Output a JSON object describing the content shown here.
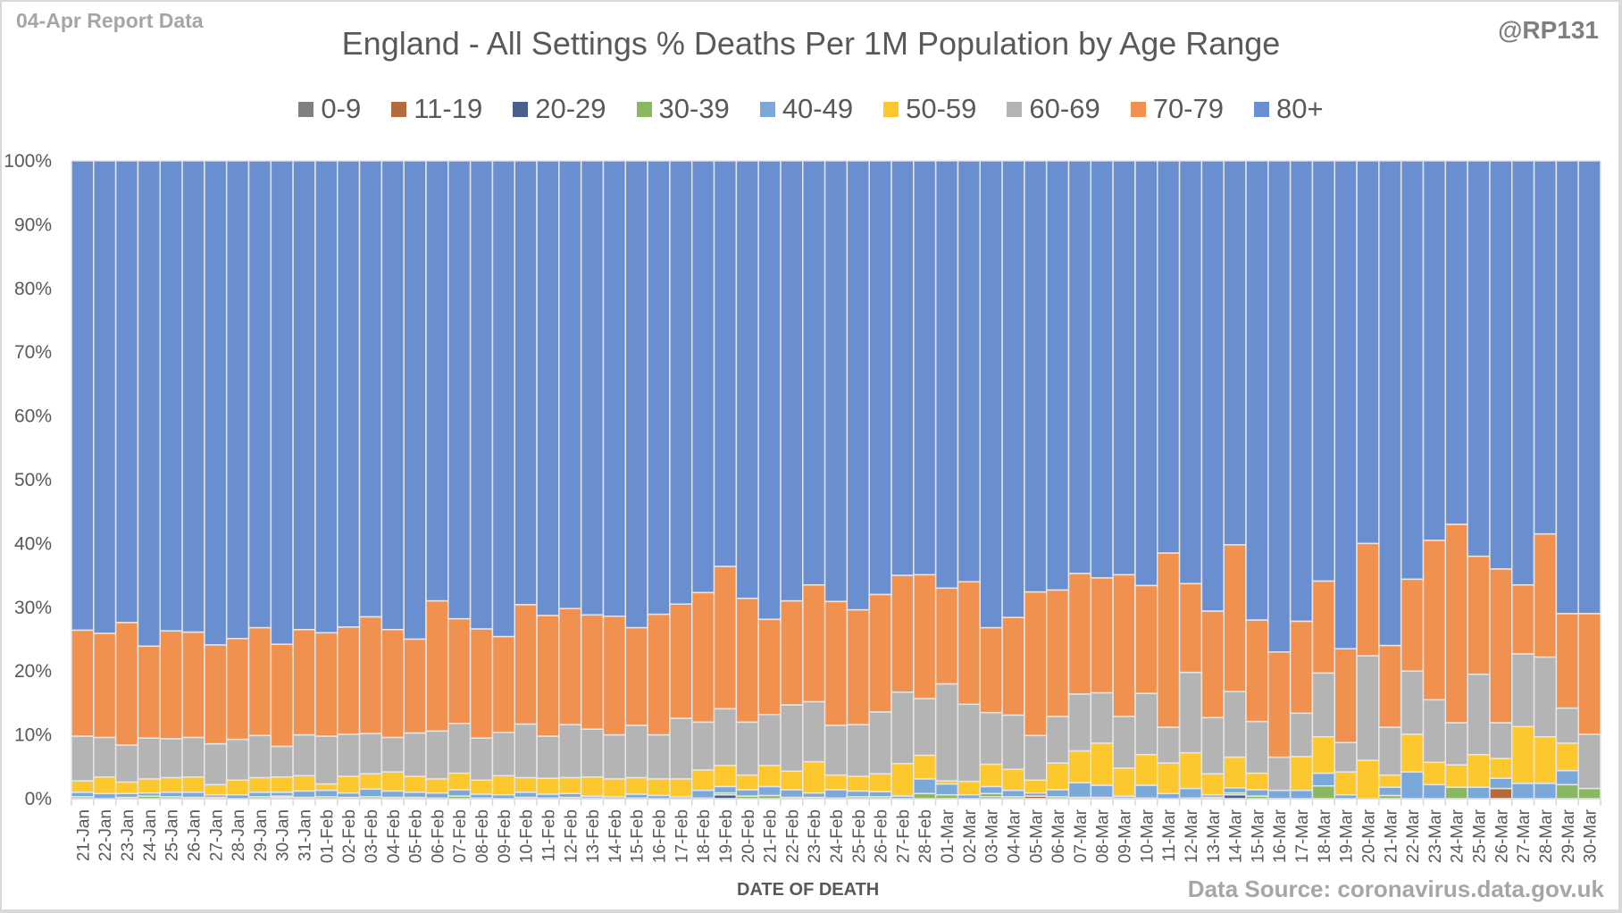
{
  "report_tag": "04-Apr Report Data",
  "handle": "@RP131",
  "source_note": "Data Source: coronavirus.data.gov.uk",
  "chart_data": {
    "type": "bar",
    "stacked": "percent",
    "title": "England - All Settings % Deaths Per 1M Population by Age Range",
    "xlabel": "DATE OF DEATH",
    "ylabel": "",
    "ylim": [
      0,
      100
    ],
    "yticks": [
      "0%",
      "10%",
      "20%",
      "30%",
      "40%",
      "50%",
      "60%",
      "70%",
      "80%",
      "90%",
      "100%"
    ],
    "grid": true,
    "legend_position": "top",
    "categories": [
      "21-Jan",
      "22-Jan",
      "23-Jan",
      "24-Jan",
      "25-Jan",
      "26-Jan",
      "27-Jan",
      "28-Jan",
      "29-Jan",
      "30-Jan",
      "31-Jan",
      "01-Feb",
      "02-Feb",
      "03-Feb",
      "04-Feb",
      "05-Feb",
      "06-Feb",
      "07-Feb",
      "08-Feb",
      "09-Feb",
      "10-Feb",
      "11-Feb",
      "12-Feb",
      "13-Feb",
      "14-Feb",
      "15-Feb",
      "16-Feb",
      "17-Feb",
      "18-Feb",
      "19-Feb",
      "20-Feb",
      "21-Feb",
      "22-Feb",
      "23-Feb",
      "24-Feb",
      "25-Feb",
      "26-Feb",
      "27-Feb",
      "28-Feb",
      "01-Mar",
      "02-Mar",
      "03-Mar",
      "04-Mar",
      "05-Mar",
      "06-Mar",
      "07-Mar",
      "08-Mar",
      "09-Mar",
      "10-Mar",
      "11-Mar",
      "12-Mar",
      "13-Mar",
      "14-Mar",
      "15-Mar",
      "16-Mar",
      "17-Mar",
      "18-Mar",
      "19-Mar",
      "20-Mar",
      "21-Mar",
      "22-Mar",
      "23-Mar",
      "24-Mar",
      "25-Mar",
      "26-Mar",
      "27-Mar",
      "28-Mar",
      "29-Mar",
      "30-Mar"
    ],
    "series": [
      {
        "name": "0-9",
        "color": "#808080",
        "values": [
          0,
          0,
          0,
          0,
          0,
          0,
          0,
          0,
          0,
          0,
          0,
          0,
          0,
          0,
          0,
          0,
          0,
          0,
          0,
          0,
          0,
          0,
          0,
          0,
          0,
          0,
          0,
          0,
          0,
          0,
          0,
          0,
          0,
          0,
          0,
          0,
          0,
          0,
          0,
          0,
          0,
          0,
          0,
          0,
          0,
          0,
          0,
          0,
          0,
          0,
          0,
          0,
          0,
          0,
          0,
          0,
          0,
          0,
          0,
          0,
          0,
          0,
          0,
          0,
          0,
          0,
          0,
          0,
          0
        ]
      },
      {
        "name": "11-19",
        "color": "#b36a3c",
        "values": [
          0,
          0,
          0,
          0,
          0,
          0,
          0,
          0,
          0,
          0,
          0,
          0,
          0,
          0,
          0,
          0,
          0,
          0,
          0,
          0,
          0,
          0,
          0,
          0,
          0,
          0,
          0,
          0,
          0,
          0,
          0,
          0,
          0,
          0,
          0,
          0,
          0,
          0,
          0,
          0,
          0,
          0,
          0,
          0.4,
          0,
          0,
          0,
          0,
          0,
          0,
          0,
          0,
          0,
          0,
          0,
          0,
          0,
          0,
          0,
          0,
          0,
          0,
          0,
          0,
          1.6,
          0,
          0,
          0,
          0
        ]
      },
      {
        "name": "20-29",
        "color": "#4a5f8c",
        "values": [
          0,
          0,
          0,
          0,
          0,
          0,
          0,
          0,
          0,
          0.2,
          0,
          0,
          0,
          0,
          0,
          0,
          0,
          0,
          0,
          0,
          0,
          0,
          0,
          0,
          0,
          0,
          0,
          0,
          0,
          0.6,
          0,
          0,
          0,
          0,
          0,
          0,
          0,
          0,
          0,
          0,
          0,
          0.3,
          0,
          0,
          0,
          0,
          0,
          0,
          0,
          0,
          0,
          0,
          0.6,
          0,
          0,
          0,
          0,
          0,
          0,
          0,
          0,
          0,
          0,
          0,
          0,
          0,
          0,
          0,
          0
        ]
      },
      {
        "name": "30-39",
        "color": "#8ab862",
        "values": [
          0.3,
          0,
          0.2,
          0.4,
          0.3,
          0.2,
          0.2,
          0,
          0.3,
          0.2,
          0.2,
          0.3,
          0.2,
          0.3,
          0.2,
          0.2,
          0.1,
          0.4,
          0.1,
          0,
          0.2,
          0.1,
          0.2,
          0.1,
          0,
          0.1,
          0,
          0,
          0.1,
          0.3,
          0.4,
          0.5,
          0.2,
          0.2,
          0.1,
          0.3,
          0.3,
          0,
          0.8,
          0.6,
          0,
          0.5,
          0.3,
          0,
          0.3,
          0.2,
          0.2,
          0.1,
          0.1,
          0,
          0.1,
          0.2,
          0.3,
          0.4,
          0,
          0,
          2,
          0,
          0,
          0.5,
          0,
          0,
          1.8,
          0,
          0,
          0,
          0,
          2.2,
          1.6
        ]
      },
      {
        "name": "40-49",
        "color": "#7aa8d9",
        "values": [
          0.7,
          0.8,
          0.6,
          0.5,
          0.7,
          0.8,
          0.4,
          0.6,
          0.7,
          0.6,
          1,
          1,
          0.7,
          1.2,
          1,
          0.8,
          0.8,
          1,
          0.6,
          0.6,
          0.8,
          0.6,
          0.6,
          0.3,
          0.3,
          0.6,
          0.5,
          0.3,
          1.2,
          1,
          1,
          1.4,
          1.2,
          0.7,
          1.3,
          0.9,
          0.8,
          0.4,
          2.3,
          1.7,
          0.6,
          1.1,
          1,
          0.5,
          1.1,
          2.3,
          1.9,
          0.3,
          2,
          0.8,
          1.5,
          0.4,
          0.8,
          1,
          1.3,
          1.3,
          2,
          0.6,
          0,
          1.3,
          4.2,
          2.2,
          0,
          1.8,
          1.6,
          2.4,
          2.4,
          2.2,
          0
        ]
      },
      {
        "name": "50-59",
        "color": "#fdc72e",
        "values": [
          1.8,
          2.6,
          1.8,
          2.2,
          2.3,
          2.4,
          1.6,
          2.3,
          2.3,
          2.4,
          2.4,
          1,
          2.6,
          2.4,
          3,
          2.5,
          2.2,
          2.6,
          2.2,
          3,
          2.3,
          2.5,
          2.5,
          3,
          2.8,
          2.6,
          2.6,
          2.8,
          3.2,
          3.3,
          2.3,
          3.3,
          2.9,
          4.9,
          2.3,
          2.3,
          2.8,
          5.1,
          3.7,
          0.5,
          2.1,
          3.5,
          3.3,
          2,
          4.2,
          5,
          6.6,
          4.4,
          4.8,
          4.8,
          5.6,
          3.3,
          4.8,
          2.6,
          0,
          5.3,
          5.7,
          3.6,
          6,
          1.9,
          5.9,
          3.5,
          3.5,
          5.1,
          3.1,
          8.9,
          7.3,
          4.3,
          0
        ]
      },
      {
        "name": "60-69",
        "color": "#b4b4b4",
        "values": [
          7,
          6.2,
          5.8,
          6.4,
          6.1,
          6.2,
          6.4,
          6.4,
          6.6,
          4.8,
          6.4,
          7.5,
          6.6,
          6.3,
          5.4,
          6.8,
          7.5,
          7.8,
          6.6,
          6.8,
          8.4,
          6.6,
          8.3,
          7.5,
          6.9,
          8.2,
          6.9,
          9.5,
          7.5,
          8.9,
          8.3,
          8,
          10.4,
          9.4,
          7.8,
          8.1,
          9.7,
          11.2,
          8.9,
          15.2,
          12.1,
          8.1,
          8.5,
          7,
          7.3,
          8.9,
          7.9,
          8.1,
          9.6,
          5.6,
          12.6,
          8.8,
          10.3,
          8.1,
          5.2,
          6.8,
          10,
          4.6,
          16.4,
          7.5,
          9.9,
          9.8,
          6.6,
          12.6,
          5.6,
          11.4,
          12.5,
          5.5,
          8.5
        ]
      },
      {
        "name": "70-79",
        "color": "#f0914f",
        "values": [
          16.6,
          16.3,
          19.2,
          14.4,
          16.9,
          16.5,
          15.5,
          15.8,
          16.9,
          16,
          16.5,
          16.2,
          16.8,
          18.3,
          16.9,
          14.7,
          20.4,
          16.4,
          17.1,
          15,
          18.7,
          18.9,
          18.2,
          17.9,
          18.6,
          15.3,
          18.9,
          17.9,
          20.3,
          22.3,
          19.4,
          14.9,
          16.3,
          18.3,
          19.4,
          18,
          18.4,
          18.3,
          19.4,
          15,
          19.2,
          13.3,
          15.3,
          22.5,
          19.8,
          18.9,
          18,
          22.2,
          16.9,
          27.3,
          13.9,
          16.7,
          23,
          15.9,
          16.5,
          14.4,
          14.4,
          14.7,
          17.6,
          12.8,
          14.4,
          25,
          31.1,
          18.5,
          24.1,
          10.8,
          19.3,
          14.8,
          18.9
        ]
      }
    ],
    "remainder_series": {
      "name": "80+",
      "color": "#6a8fd0",
      "note": "80+ fills each bar to 100%"
    }
  }
}
